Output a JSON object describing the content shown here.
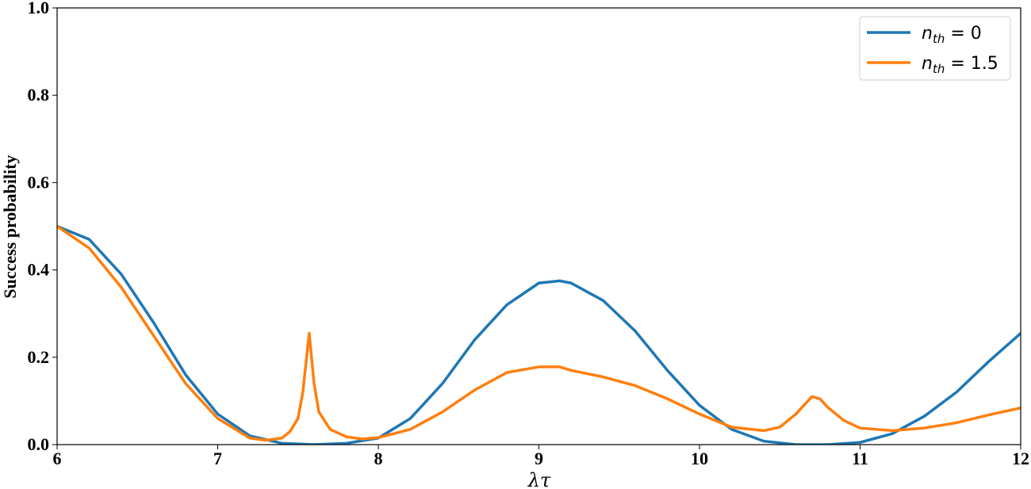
{
  "chart_data": {
    "type": "line",
    "x_label": "λτ",
    "y_label": "Success probability",
    "xlim": [
      6,
      12
    ],
    "ylim": [
      0,
      1.0
    ],
    "xticks": [
      6,
      7,
      8,
      9,
      10,
      11,
      12
    ],
    "yticks": [
      {
        "value": 0,
        "label": "0.0"
      },
      0.2,
      0.4,
      0.6,
      0.8,
      {
        "value": 1.0,
        "label": "1.0"
      }
    ],
    "legend": "upper right",
    "series": [
      {
        "name": "n_th = 0",
        "color": "#1f77b4",
        "x": [
          6.0,
          6.2,
          6.4,
          6.6,
          6.8,
          7.0,
          7.2,
          7.4,
          7.6,
          7.8,
          8.0,
          8.2,
          8.4,
          8.6,
          8.8,
          9.0,
          9.13,
          9.2,
          9.4,
          9.6,
          9.8,
          10.0,
          10.2,
          10.4,
          10.6,
          10.8,
          11.0,
          11.2,
          11.4,
          11.6,
          11.8,
          12.0
        ],
        "values": [
          0.5,
          0.47,
          0.39,
          0.28,
          0.16,
          0.07,
          0.02,
          0.003,
          0.0,
          0.003,
          0.015,
          0.06,
          0.14,
          0.24,
          0.32,
          0.37,
          0.375,
          0.37,
          0.33,
          0.26,
          0.17,
          0.09,
          0.035,
          0.008,
          0.0,
          0.0,
          0.005,
          0.025,
          0.065,
          0.12,
          0.19,
          0.255
        ]
      },
      {
        "name": "n_th = 1.5",
        "color": "#ff7f0e",
        "x": [
          6.0,
          6.2,
          6.4,
          6.6,
          6.8,
          7.0,
          7.2,
          7.3,
          7.4,
          7.45,
          7.5,
          7.53,
          7.57,
          7.6,
          7.63,
          7.7,
          7.8,
          7.9,
          8.0,
          8.2,
          8.4,
          8.6,
          8.8,
          9.0,
          9.13,
          9.2,
          9.4,
          9.6,
          9.8,
          10.0,
          10.2,
          10.4,
          10.5,
          10.6,
          10.7,
          10.75,
          10.8,
          10.9,
          11.0,
          11.2,
          11.4,
          11.6,
          11.8,
          12.0
        ],
        "values": [
          0.5,
          0.45,
          0.36,
          0.25,
          0.14,
          0.06,
          0.015,
          0.01,
          0.015,
          0.03,
          0.06,
          0.12,
          0.255,
          0.14,
          0.075,
          0.035,
          0.018,
          0.013,
          0.016,
          0.035,
          0.075,
          0.125,
          0.165,
          0.178,
          0.178,
          0.17,
          0.155,
          0.135,
          0.105,
          0.07,
          0.04,
          0.032,
          0.04,
          0.07,
          0.11,
          0.105,
          0.085,
          0.055,
          0.038,
          0.032,
          0.038,
          0.05,
          0.068,
          0.084
        ]
      }
    ]
  }
}
